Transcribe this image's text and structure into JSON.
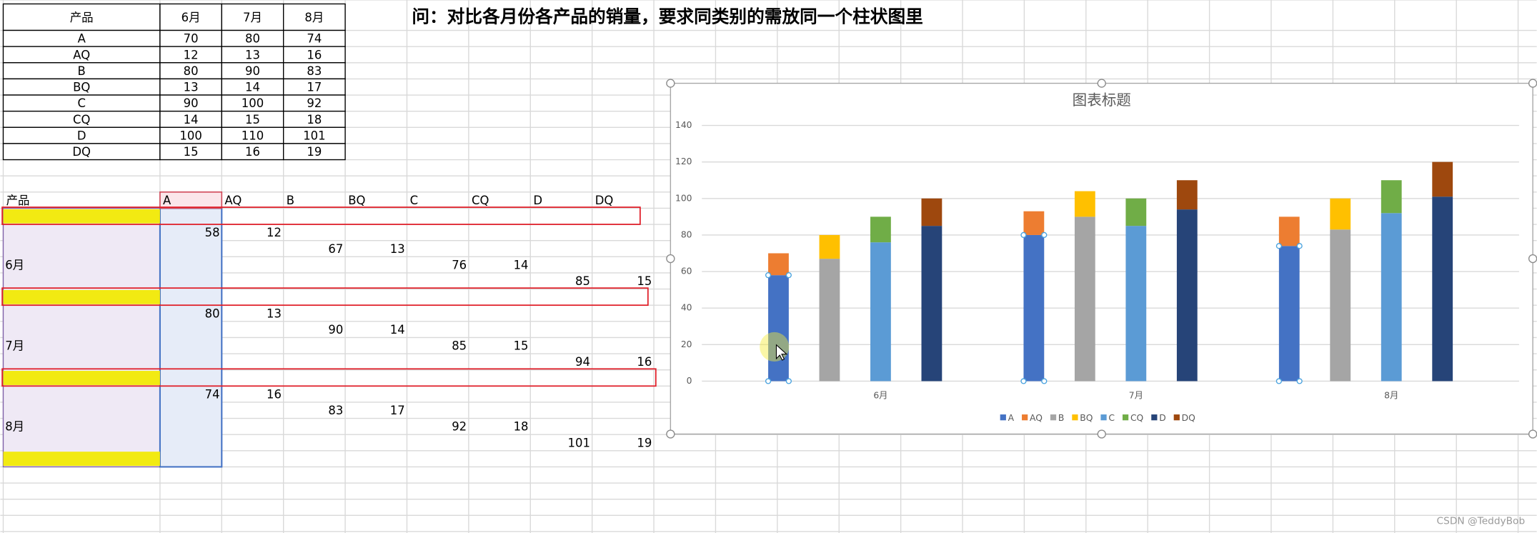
{
  "question": "问：对比各月份各产品的销量，要求同类别的需放同一个柱状图里",
  "summary_table": {
    "header": [
      "产品",
      "6月",
      "7月",
      "8月"
    ],
    "rows": [
      [
        "A",
        70,
        80,
        74
      ],
      [
        "AQ",
        12,
        13,
        16
      ],
      [
        "B",
        80,
        90,
        83
      ],
      [
        "BQ",
        13,
        14,
        17
      ],
      [
        "C",
        90,
        100,
        92
      ],
      [
        "CQ",
        14,
        15,
        18
      ],
      [
        "D",
        100,
        110,
        101
      ],
      [
        "DQ",
        15,
        16,
        19
      ]
    ]
  },
  "sheet": {
    "header_label": "产品"
  },
  "chart_data": {
    "type": "bar",
    "stacked": true,
    "title": "图表标题",
    "categories": [
      null,
      null,
      null,
      "6月",
      null,
      null,
      null,
      null,
      "7月",
      null,
      null,
      null,
      null,
      "8月",
      null,
      null
    ],
    "series": [
      {
        "name": "A",
        "color": "#4472c4",
        "values": [
          null,
          58,
          null,
          null,
          null,
          null,
          80,
          null,
          null,
          null,
          null,
          74,
          null,
          null,
          null,
          null
        ]
      },
      {
        "name": "AQ",
        "color": "#ed7d31",
        "values": [
          null,
          12,
          null,
          null,
          null,
          null,
          13,
          null,
          null,
          null,
          null,
          16,
          null,
          null,
          null,
          null
        ]
      },
      {
        "name": "B",
        "color": "#a5a5a5",
        "values": [
          null,
          null,
          67,
          null,
          null,
          null,
          null,
          90,
          null,
          null,
          null,
          null,
          83,
          null,
          null,
          null
        ]
      },
      {
        "name": "BQ",
        "color": "#ffc000",
        "values": [
          null,
          null,
          13,
          null,
          null,
          null,
          null,
          14,
          null,
          null,
          null,
          null,
          17,
          null,
          null,
          null
        ]
      },
      {
        "name": "C",
        "color": "#5b9bd5",
        "values": [
          null,
          null,
          null,
          76,
          null,
          null,
          null,
          null,
          85,
          null,
          null,
          null,
          null,
          92,
          null,
          null
        ]
      },
      {
        "name": "CQ",
        "color": "#70ad47",
        "values": [
          null,
          null,
          null,
          14,
          null,
          null,
          null,
          null,
          15,
          null,
          null,
          null,
          null,
          18,
          null,
          null
        ]
      },
      {
        "name": "D",
        "color": "#264478",
        "values": [
          null,
          null,
          null,
          null,
          85,
          null,
          null,
          null,
          null,
          94,
          null,
          null,
          null,
          null,
          101,
          null
        ]
      },
      {
        "name": "DQ",
        "color": "#9e480e",
        "values": [
          null,
          null,
          null,
          null,
          15,
          null,
          null,
          null,
          null,
          16,
          null,
          null,
          null,
          null,
          19,
          null
        ]
      }
    ],
    "ylim": [
      0,
      140
    ],
    "yticks": [
      0,
      20,
      40,
      60,
      80,
      100,
      120,
      140
    ],
    "grid": true,
    "legend": "bottom"
  },
  "watermark": "CSDN @TeddyBob"
}
